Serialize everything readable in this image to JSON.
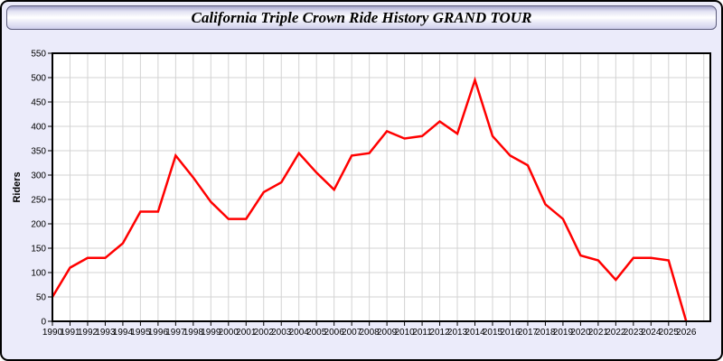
{
  "window": {
    "title": "California Triple Crown Ride History GRAND TOUR"
  },
  "chart_data": {
    "type": "line",
    "title": "California Triple Crown Ride History GRAND TOUR",
    "xlabel": "",
    "ylabel": "Riders",
    "x": [
      1990,
      1991,
      1992,
      1993,
      1994,
      1995,
      1996,
      1997,
      1998,
      1999,
      2000,
      2001,
      2002,
      2003,
      2004,
      2005,
      2006,
      2007,
      2008,
      2009,
      2010,
      2011,
      2012,
      2013,
      2014,
      2015,
      2016,
      2017,
      2018,
      2019,
      2020,
      2021,
      2022,
      2023,
      2024,
      2025,
      2026
    ],
    "series": [
      {
        "name": "Riders",
        "color": "#ff0000",
        "values": [
          50,
          110,
          130,
          130,
          160,
          225,
          225,
          340,
          295,
          245,
          210,
          210,
          265,
          285,
          345,
          305,
          270,
          340,
          345,
          390,
          375,
          380,
          410,
          385,
          495,
          380,
          340,
          320,
          240,
          210,
          135,
          125,
          85,
          130,
          130,
          125,
          0
        ]
      }
    ],
    "ylim": [
      0,
      550
    ],
    "ytick_step": 50,
    "grid": true,
    "legend_position": "none",
    "plot_bg": "#ffffff",
    "grid_color": "#d3d3d3",
    "axis_color": "#000000"
  }
}
